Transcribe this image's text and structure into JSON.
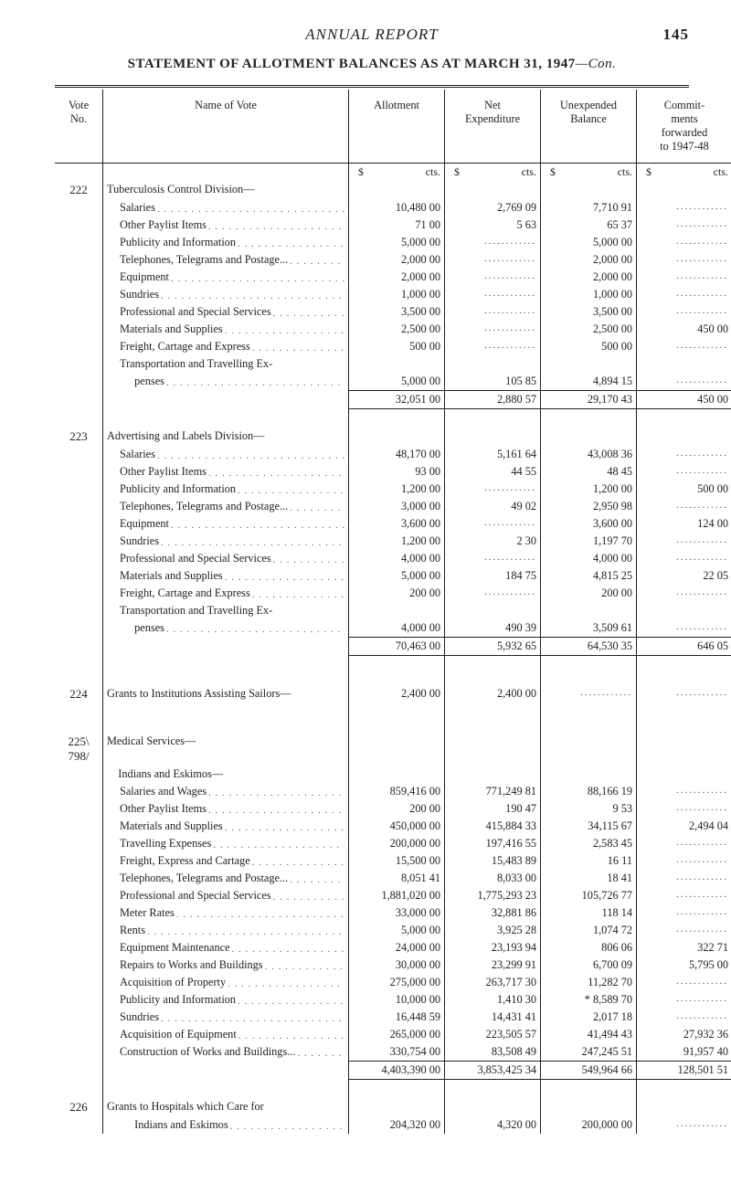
{
  "page": {
    "running_title": "ANNUAL REPORT",
    "page_number": "145",
    "caption_main": "STATEMENT OF ALLOTMENT BALANCES AS AT MARCH 31, 1947",
    "caption_suffix": "—Con."
  },
  "columns": {
    "vote_no": "Vote\nNo.",
    "name": "Name of Vote",
    "allotment": "Allotment",
    "net_expenditure": "Net\nExpenditure",
    "unexpended": "Unexpended\nBalance",
    "commitments": "Commit-\nments\nforwarded\nto 1947-48"
  },
  "unit_labels": {
    "dollar": "$",
    "cts": "cts."
  },
  "dot_fill": ". . . . . . . . . . . . . . . . . . . . . . . . . . . . . . . . . . . . . . . . . . . . . . . . . .",
  "dash_cell": "............",
  "sections": [
    {
      "vote": "222",
      "heading": "Tuberculosis Control Division—",
      "rows": [
        {
          "name": "Salaries",
          "allotment": "10,480 00",
          "net": "2,769 09",
          "unexp": "7,710 91",
          "commit": ""
        },
        {
          "name": "Other Paylist Items",
          "allotment": "71 00",
          "net": "5 63",
          "unexp": "65 37",
          "commit": ""
        },
        {
          "name": "Publicity and Information",
          "allotment": "5,000 00",
          "net": "",
          "unexp": "5,000 00",
          "commit": ""
        },
        {
          "name": "Telephones, Telegrams and Postage...",
          "allotment": "2,000 00",
          "net": "",
          "unexp": "2,000 00",
          "commit": ""
        },
        {
          "name": "Equipment",
          "allotment": "2,000 00",
          "net": "",
          "unexp": "2,000 00",
          "commit": ""
        },
        {
          "name": "Sundries",
          "allotment": "1,000 00",
          "net": "",
          "unexp": "1,000 00",
          "commit": ""
        },
        {
          "name": "Professional and Special Services",
          "allotment": "3,500 00",
          "net": "",
          "unexp": "3,500 00",
          "commit": ""
        },
        {
          "name": "Materials and Supplies",
          "allotment": "2,500 00",
          "net": "",
          "unexp": "2,500 00",
          "commit": "450 00"
        },
        {
          "name": "Freight, Cartage and Express",
          "allotment": "500 00",
          "net": "",
          "unexp": "500 00",
          "commit": ""
        },
        {
          "name": "Transportation and Travelling Ex-",
          "nolead": true
        },
        {
          "name": "  penses",
          "allotment": "5,000 00",
          "net": "105 85",
          "unexp": "4,894 15",
          "commit": ""
        }
      ],
      "subtotal": {
        "allotment": "32,051 00",
        "net": "2,880 57",
        "unexp": "29,170 43",
        "commit": "450 00"
      }
    },
    {
      "vote": "223",
      "heading": "Advertising and Labels Division—",
      "rows": [
        {
          "name": "Salaries",
          "allotment": "48,170 00",
          "net": "5,161 64",
          "unexp": "43,008 36",
          "commit": ""
        },
        {
          "name": "Other Paylist Items",
          "allotment": "93 00",
          "net": "44 55",
          "unexp": "48 45",
          "commit": ""
        },
        {
          "name": "Publicity and Information",
          "allotment": "1,200 00",
          "net": "",
          "unexp": "1,200 00",
          "commit": "500 00"
        },
        {
          "name": "Telephones, Telegrams and Postage...",
          "allotment": "3,000 00",
          "net": "49 02",
          "unexp": "2,950 98",
          "commit": ""
        },
        {
          "name": "Equipment",
          "allotment": "3,600 00",
          "net": "",
          "unexp": "3,600 00",
          "commit": "124 00"
        },
        {
          "name": "Sundries",
          "allotment": "1,200 00",
          "net": "2 30",
          "unexp": "1,197 70",
          "commit": ""
        },
        {
          "name": "Professional and Special Services",
          "allotment": "4,000 00",
          "net": "",
          "unexp": "4,000 00",
          "commit": ""
        },
        {
          "name": "Materials and Supplies",
          "allotment": "5,000 00",
          "net": "184 75",
          "unexp": "4,815 25",
          "commit": "22 05"
        },
        {
          "name": "Freight, Cartage and Express",
          "allotment": "200 00",
          "net": "",
          "unexp": "200 00",
          "commit": ""
        },
        {
          "name": "Transportation and Travelling Ex-",
          "nolead": true
        },
        {
          "name": "  penses",
          "allotment": "4,000 00",
          "net": "490 39",
          "unexp": "3,509 61",
          "commit": ""
        }
      ],
      "subtotal": {
        "allotment": "70,463 00",
        "net": "5,932 65",
        "unexp": "64,530 35",
        "commit": "646 05"
      }
    },
    {
      "vote": "224",
      "heading": "Grants to Institutions Assisting Sailors—",
      "inline": true,
      "rows": [
        {
          "name": "",
          "allotment": "2,400 00",
          "net": "2,400 00",
          "unexp": "",
          "commit": ""
        }
      ]
    },
    {
      "vote": "225\\\n798}",
      "vote_raw": "225\n798",
      "vote_brace": true,
      "heading": "Medical Services—",
      "subheading": "    Indians and Eskimos—",
      "rows": [
        {
          "name": "Salaries and Wages",
          "allotment": "859,416 00",
          "net": "771,249 81",
          "unexp": "88,166 19",
          "commit": ""
        },
        {
          "name": "Other Paylist Items",
          "allotment": "200 00",
          "net": "190 47",
          "unexp": "9 53",
          "commit": ""
        },
        {
          "name": "Materials and Supplies",
          "allotment": "450,000 00",
          "net": "415,884 33",
          "unexp": "34,115 67",
          "commit": "2,494 04"
        },
        {
          "name": "Travelling Expenses",
          "allotment": "200,000 00",
          "net": "197,416 55",
          "unexp": "2,583 45",
          "commit": ""
        },
        {
          "name": "Freight, Express and Cartage",
          "allotment": "15,500 00",
          "net": "15,483 89",
          "unexp": "16 11",
          "commit": ""
        },
        {
          "name": "Telephones, Telegrams and Postage...",
          "allotment": "8,051 41",
          "net": "8,033 00",
          "unexp": "18 41",
          "commit": ""
        },
        {
          "name": "Professional and Special Services",
          "allotment": "1,881,020 00",
          "net": "1,775,293 23",
          "unexp": "105,726 77",
          "commit": ""
        },
        {
          "name": "Meter Rates",
          "allotment": "33,000 00",
          "net": "32,881 86",
          "unexp": "118 14",
          "commit": ""
        },
        {
          "name": "Rents",
          "allotment": "5,000 00",
          "net": "3,925 28",
          "unexp": "1,074 72",
          "commit": ""
        },
        {
          "name": "Equipment Maintenance",
          "allotment": "24,000 00",
          "net": "23,193 94",
          "unexp": "806 06",
          "commit": "322 71"
        },
        {
          "name": "Repairs to Works and Buildings",
          "allotment": "30,000 00",
          "net": "23,299 91",
          "unexp": "6,700 09",
          "commit": "5,795 00"
        },
        {
          "name": "Acquisition of Property",
          "allotment": "275,000 00",
          "net": "263,717 30",
          "unexp": "11,282 70",
          "commit": ""
        },
        {
          "name": "Publicity and Information",
          "allotment": "10,000 00",
          "net": "1,410 30",
          "unexp": "* 8,589 70",
          "commit": ""
        },
        {
          "name": "Sundries",
          "allotment": "16,448 59",
          "net": "14,431 41",
          "unexp": "2,017 18",
          "commit": ""
        },
        {
          "name": "Acquisition of Equipment",
          "allotment": "265,000 00",
          "net": "223,505 57",
          "unexp": "41,494 43",
          "commit": "27,932 36"
        },
        {
          "name": "Construction of Works and Buildings...",
          "allotment": "330,754 00",
          "net": "83,508 49",
          "unexp": "247,245 51",
          "commit": "91,957 40"
        }
      ],
      "subtotal": {
        "allotment": "4,403,390 00",
        "net": "3,853,425 34",
        "unexp": "549,964 66",
        "commit": "128,501 51"
      }
    },
    {
      "vote": "226",
      "heading": "Grants to Hospitals which Care for",
      "rows": [
        {
          "name": "  Indians and Eskimos",
          "allotment": "204,320 00",
          "net": "4,320 00",
          "unexp": "200,000 00",
          "commit": ""
        }
      ]
    }
  ],
  "colors": {
    "text": "#222222",
    "rule": "#222222",
    "leader": "#666666",
    "bg": "#ffffff"
  },
  "typography": {
    "base_font": "Times New Roman",
    "base_size_pt": 9,
    "caption_size_pt": 11,
    "running_head_size_pt": 13
  }
}
